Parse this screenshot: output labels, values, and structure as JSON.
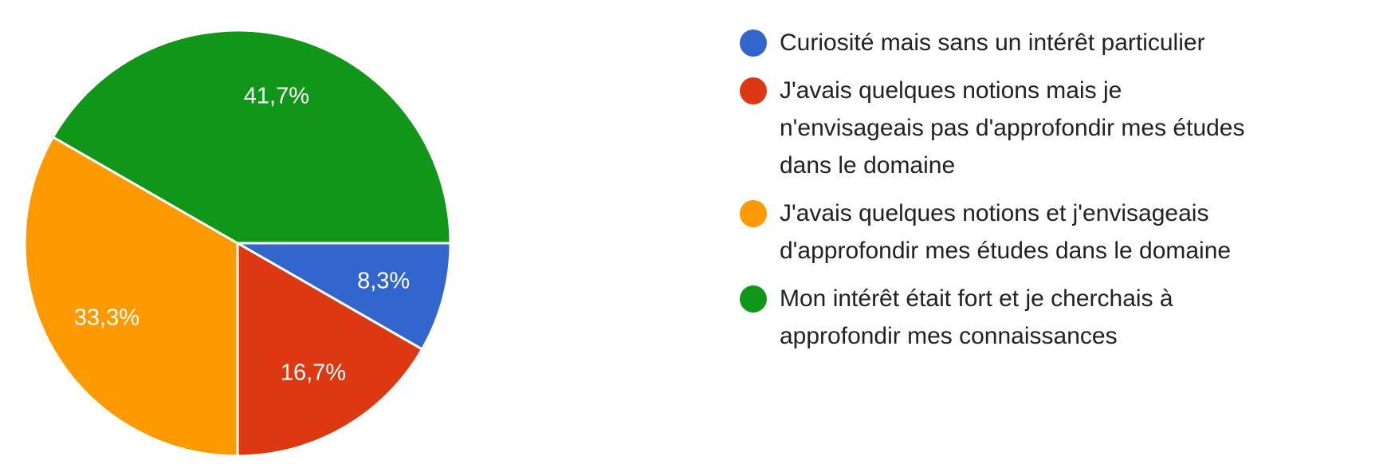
{
  "chart_data": {
    "type": "pie",
    "categories": [
      "Curiosité mais sans un intérêt particulier",
      "J'avais quelques notions mais je n'envisageais pas d'approfondir mes études dans le domaine",
      "J'avais quelques notions et j'envisageais d'approfondir mes études dans le domaine",
      "Mon intérêt était fort et je cherchais à approfondir mes connaissances"
    ],
    "values": [
      8.3,
      16.7,
      33.3,
      41.7
    ],
    "value_labels": [
      "8,3%",
      "16,7%",
      "33,3%",
      "41,7%"
    ],
    "colors": [
      "#3366cc",
      "#dc3912",
      "#ff9900",
      "#109618"
    ],
    "legend": "right"
  }
}
